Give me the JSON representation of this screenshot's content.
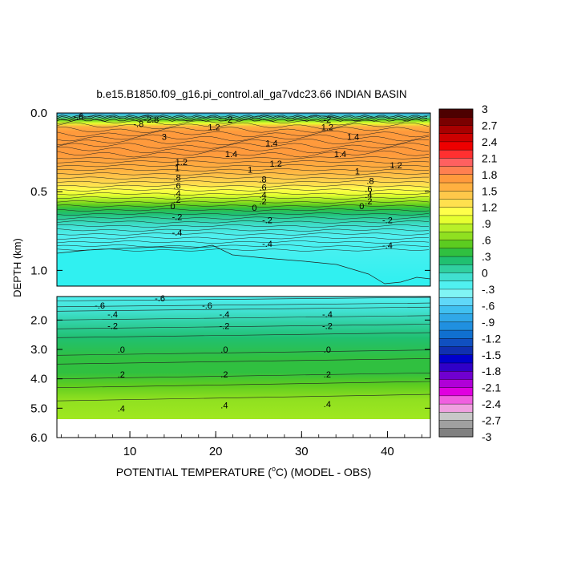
{
  "chart_data": {
    "type": "heatmap",
    "title": "b.e15.B1850.f09_g16.pi_control.all_ga7vdc23.66 INDIAN BASIN",
    "xlabel_prefix": "POTENTIAL TEMPERATURE (",
    "xlabel_degree": "o",
    "xlabel_suffix": "C) (MODEL - OBS)",
    "ylabel": "DEPTH (km)",
    "x_ticks": [
      "10",
      "20",
      "30",
      "40"
    ],
    "x_tick_values": [
      10,
      20,
      30,
      40
    ],
    "xlim": [
      1.5,
      45
    ],
    "upper_panel": {
      "ylim": [
        0.0,
        1.1
      ],
      "y_ticks": [
        "0.0",
        "0.5",
        "1.0"
      ],
      "y_tick_values": [
        0.0,
        0.5,
        1.0
      ]
    },
    "lower_panel": {
      "ylim": [
        1.2,
        6.0
      ],
      "y_ticks": [
        "2.0",
        "3.0",
        "4.0",
        "5.0",
        "6.0"
      ],
      "y_tick_values": [
        2.0,
        3.0,
        4.0,
        5.0,
        6.0
      ]
    },
    "colorbar": {
      "labels": [
        "3",
        "2.7",
        "2.4",
        "2.1",
        "1.8",
        "1.5",
        "1.2",
        ".9",
        ".6",
        ".3",
        "0",
        "-.3",
        "-.6",
        "-.9",
        "-1.2",
        "-1.5",
        "-1.8",
        "-2.1",
        "-2.4",
        "-2.7",
        "-3"
      ],
      "colors": [
        "#4d0000",
        "#7a0000",
        "#a80000",
        "#cc0000",
        "#ee0000",
        "#ff3030",
        "#ff6060",
        "#ff8050",
        "#ff9a3c",
        "#ffb040",
        "#ffc84a",
        "#ffe04e",
        "#ffff4a",
        "#e6ff30",
        "#b8f028",
        "#90e020",
        "#5ccc20",
        "#30c040",
        "#20c070",
        "#30d0a0",
        "#40e0d0",
        "#50f0f0",
        "#80f4f4",
        "#60d8f8",
        "#40c0f0",
        "#30a8e8",
        "#2090e0",
        "#1070d0",
        "#1050c0",
        "#1030b0",
        "#0000cc",
        "#3000c8",
        "#7000d0",
        "#b000d8",
        "#e000e0",
        "#f060e0",
        "#f0a0e0",
        "#c8c8c8",
        "#a0a0a0",
        "#808080"
      ]
    },
    "upper_contour_labels": [
      {
        "text": "-.6",
        "x": 4.0,
        "y": 0.02
      },
      {
        "text": "-2.8",
        "x": 12.5,
        "y": 0.04
      },
      {
        "text": "-.8",
        "x": 11.0,
        "y": 0.07
      },
      {
        "text": "-2",
        "x": 21.5,
        "y": 0.04
      },
      {
        "text": "1.2",
        "x": 19.8,
        "y": 0.09
      },
      {
        "text": "-2",
        "x": 33.0,
        "y": 0.04
      },
      {
        "text": "1.2",
        "x": 33.0,
        "y": 0.09
      },
      {
        "text": "3",
        "x": 14.0,
        "y": 0.15
      },
      {
        "text": "1.4",
        "x": 36.0,
        "y": 0.15
      },
      {
        "text": "1.4",
        "x": 26.5,
        "y": 0.19
      },
      {
        "text": "1.4",
        "x": 21.8,
        "y": 0.26
      },
      {
        "text": "1.4",
        "x": 34.5,
        "y": 0.26
      },
      {
        "text": "1.2",
        "x": 16.0,
        "y": 0.31
      },
      {
        "text": "1.2",
        "x": 27.0,
        "y": 0.32
      },
      {
        "text": "1.2",
        "x": 41.0,
        "y": 0.33
      },
      {
        "text": "1",
        "x": 24.0,
        "y": 0.36
      },
      {
        "text": "1",
        "x": 15.5,
        "y": 0.35
      },
      {
        "text": "1",
        "x": 36.5,
        "y": 0.37
      },
      {
        "text": ".8",
        "x": 15.5,
        "y": 0.41
      },
      {
        "text": ".8",
        "x": 25.5,
        "y": 0.42
      },
      {
        "text": ".8",
        "x": 38.0,
        "y": 0.43
      },
      {
        "text": ".6",
        "x": 15.5,
        "y": 0.46
      },
      {
        "text": ".6",
        "x": 25.5,
        "y": 0.47
      },
      {
        "text": ".6",
        "x": 37.8,
        "y": 0.48
      },
      {
        "text": ".4",
        "x": 15.5,
        "y": 0.51
      },
      {
        "text": ".4",
        "x": 25.5,
        "y": 0.52
      },
      {
        "text": ".4",
        "x": 37.8,
        "y": 0.52
      },
      {
        "text": ".2",
        "x": 15.5,
        "y": 0.55
      },
      {
        "text": ".2",
        "x": 25.5,
        "y": 0.56
      },
      {
        "text": ".2",
        "x": 37.8,
        "y": 0.56
      },
      {
        "text": "0",
        "x": 15.0,
        "y": 0.59
      },
      {
        "text": "0",
        "x": 24.5,
        "y": 0.6
      },
      {
        "text": "0",
        "x": 37.0,
        "y": 0.59
      },
      {
        "text": "-.2",
        "x": 15.5,
        "y": 0.66
      },
      {
        "text": "-.2",
        "x": 26.0,
        "y": 0.68
      },
      {
        "text": "-.2",
        "x": 40.0,
        "y": 0.68
      },
      {
        "text": "-.4",
        "x": 15.5,
        "y": 0.76
      },
      {
        "text": "-.4",
        "x": 26.0,
        "y": 0.83
      },
      {
        "text": "-.4",
        "x": 40.0,
        "y": 0.84
      }
    ],
    "lower_contour_labels": [
      {
        "text": "-.6",
        "x": 13.5,
        "y": 1.25
      },
      {
        "text": "-.6",
        "x": 6.5,
        "y": 1.5
      },
      {
        "text": "-.6",
        "x": 19.0,
        "y": 1.5
      },
      {
        "text": "-.4",
        "x": 8.0,
        "y": 1.8
      },
      {
        "text": "-.4",
        "x": 21.0,
        "y": 1.8
      },
      {
        "text": "-.4",
        "x": 33.0,
        "y": 1.8
      },
      {
        "text": "-.2",
        "x": 8.0,
        "y": 2.2
      },
      {
        "text": "-.2",
        "x": 21.0,
        "y": 2.2
      },
      {
        "text": "-.2",
        "x": 33.0,
        "y": 2.2
      },
      {
        "text": ".0",
        "x": 9.0,
        "y": 3.0
      },
      {
        "text": ".0",
        "x": 21.0,
        "y": 3.0
      },
      {
        "text": ".0",
        "x": 33.0,
        "y": 3.0
      },
      {
        "text": ".2",
        "x": 9.0,
        "y": 3.85
      },
      {
        "text": ".2",
        "x": 21.0,
        "y": 3.85
      },
      {
        "text": ".2",
        "x": 33.0,
        "y": 3.85
      },
      {
        "text": ".4",
        "x": 9.0,
        "y": 5.0
      },
      {
        "text": ".4",
        "x": 21.0,
        "y": 4.9
      },
      {
        "text": ".4",
        "x": 33.0,
        "y": 4.85
      }
    ]
  }
}
